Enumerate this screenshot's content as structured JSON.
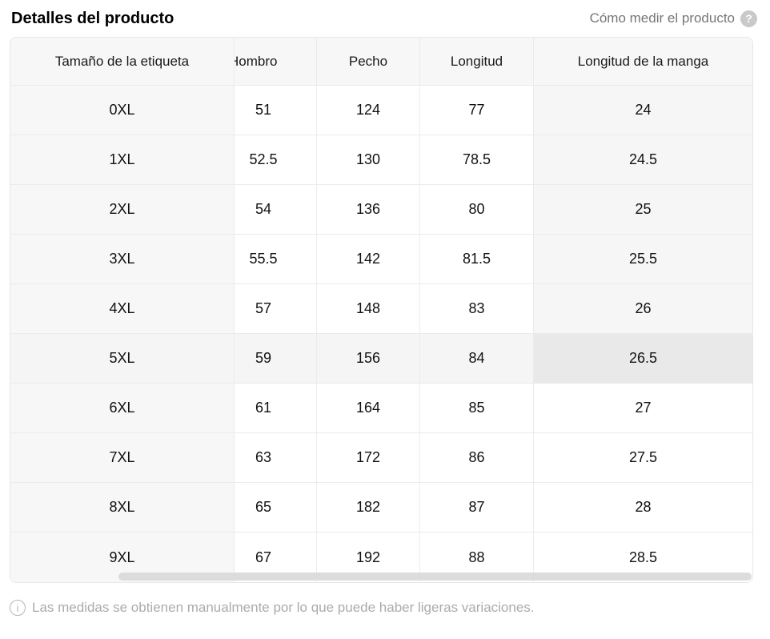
{
  "header": {
    "title": "Detalles del producto",
    "measure_link_label": "Cómo medir el producto",
    "help_icon": "question-mark-icon",
    "help_icon_glyph": "?"
  },
  "table": {
    "columns": [
      "Tamaño de la etiqueta",
      "Hombro",
      "Pecho",
      "Longitud",
      "Longitud de la manga"
    ],
    "rows": [
      {
        "size": "0XL",
        "values": [
          "51",
          "124",
          "77",
          "24"
        ]
      },
      {
        "size": "1XL",
        "values": [
          "52.5",
          "130",
          "78.5",
          "24.5"
        ]
      },
      {
        "size": "2XL",
        "values": [
          "54",
          "136",
          "80",
          "25"
        ]
      },
      {
        "size": "3XL",
        "values": [
          "55.5",
          "142",
          "81.5",
          "25.5"
        ]
      },
      {
        "size": "4XL",
        "values": [
          "57",
          "148",
          "83",
          "26"
        ]
      },
      {
        "size": "5XL",
        "values": [
          "59",
          "156",
          "84",
          "26.5"
        ]
      },
      {
        "size": "6XL",
        "values": [
          "61",
          "164",
          "85",
          "27"
        ]
      },
      {
        "size": "7XL",
        "values": [
          "63",
          "172",
          "86",
          "27.5"
        ]
      },
      {
        "size": "8XL",
        "values": [
          "65",
          "182",
          "87",
          "28"
        ]
      },
      {
        "size": "9XL",
        "values": [
          "67",
          "192",
          "88",
          "28.5"
        ]
      }
    ],
    "highlight": {
      "row": "5XL",
      "column": "Longitud de la manga"
    }
  },
  "footer": {
    "info_icon": "info-icon",
    "info_icon_glyph": "i",
    "note": "Las medidas se obtienen manualmente por lo que puede haber ligeras variaciones."
  },
  "colors": {
    "header_bg": "#f7f7f8",
    "sticky_column_bg": "#f7f7f8",
    "row_highlight": "#f5f5f6",
    "column_highlight": "#f6f6f7",
    "cross_highlight": "#e9e9ea",
    "border": "#ebebec",
    "link_text": "#767676",
    "note_text": "#ababab",
    "help_icon_bg": "#c9c9ca",
    "scrollbar_thumb": "#dcdcdd"
  }
}
